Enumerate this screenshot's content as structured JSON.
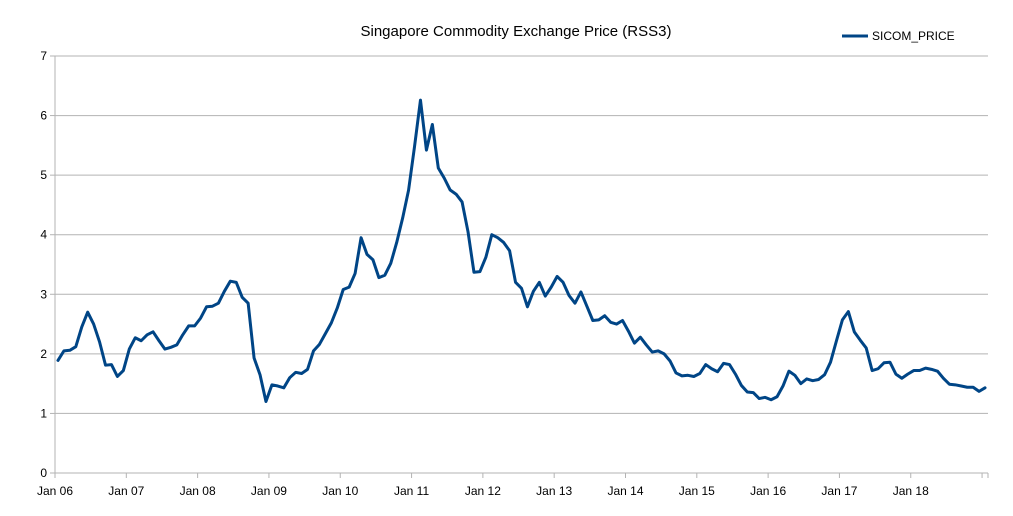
{
  "chart_data": {
    "type": "line",
    "title": "Singapore Commodity Exchange Price (RSS3)",
    "xlabel": "",
    "ylabel": "",
    "ylim": [
      0,
      7
    ],
    "yticks": [
      "0",
      "1",
      "2",
      "3",
      "4",
      "5",
      "6",
      "7"
    ],
    "xticks": [
      "Jan 06",
      "Jan 07",
      "Jan 08",
      "Jan 09",
      "Jan 10",
      "Jan 11",
      "Jan 12",
      "Jan 13",
      "Jan 14",
      "Jan 15",
      "Jan 16",
      "Jan 17",
      "Jan 18"
    ],
    "grid": "horizontal",
    "legend_position": "top-right",
    "series_color": "#004586",
    "series": [
      {
        "name": "SICOM_PRICE",
        "values": [
          1.89,
          2.05,
          2.06,
          2.12,
          2.45,
          2.7,
          2.5,
          2.2,
          1.81,
          1.82,
          1.62,
          1.72,
          2.08,
          2.27,
          2.22,
          2.32,
          2.37,
          2.22,
          2.08,
          2.11,
          2.15,
          2.32,
          2.47,
          2.47,
          2.6,
          2.79,
          2.8,
          2.85,
          3.05,
          3.22,
          3.2,
          2.95,
          2.85,
          1.93,
          1.65,
          1.2,
          1.48,
          1.46,
          1.43,
          1.6,
          1.69,
          1.67,
          1.74,
          2.05,
          2.16,
          2.34,
          2.52,
          2.77,
          3.08,
          3.12,
          3.35,
          3.95,
          3.67,
          3.58,
          3.28,
          3.32,
          3.52,
          3.87,
          4.28,
          4.75,
          5.48,
          6.26,
          5.42,
          5.85,
          5.12,
          4.95,
          4.75,
          4.68,
          4.55,
          4.05,
          3.37,
          3.38,
          3.62,
          4.0,
          3.95,
          3.87,
          3.73,
          3.2,
          3.1,
          2.79,
          3.05,
          3.2,
          2.97,
          3.12,
          3.3,
          3.2,
          2.98,
          2.85,
          3.04,
          2.8,
          2.56,
          2.57,
          2.64,
          2.53,
          2.5,
          2.56,
          2.38,
          2.18,
          2.28,
          2.15,
          2.03,
          2.05,
          2.0,
          1.88,
          1.68,
          1.63,
          1.64,
          1.62,
          1.67,
          1.82,
          1.75,
          1.7,
          1.84,
          1.82,
          1.66,
          1.47,
          1.36,
          1.35,
          1.25,
          1.27,
          1.23,
          1.28,
          1.46,
          1.71,
          1.64,
          1.5,
          1.58,
          1.55,
          1.57,
          1.65,
          1.86,
          2.22,
          2.57,
          2.71,
          2.37,
          2.23,
          2.1,
          1.72,
          1.75,
          1.85,
          1.86,
          1.66,
          1.59,
          1.66,
          1.72,
          1.72,
          1.76,
          1.74,
          1.71,
          1.59,
          1.49,
          1.48,
          1.46,
          1.44,
          1.44,
          1.37,
          1.43
        ]
      }
    ]
  }
}
